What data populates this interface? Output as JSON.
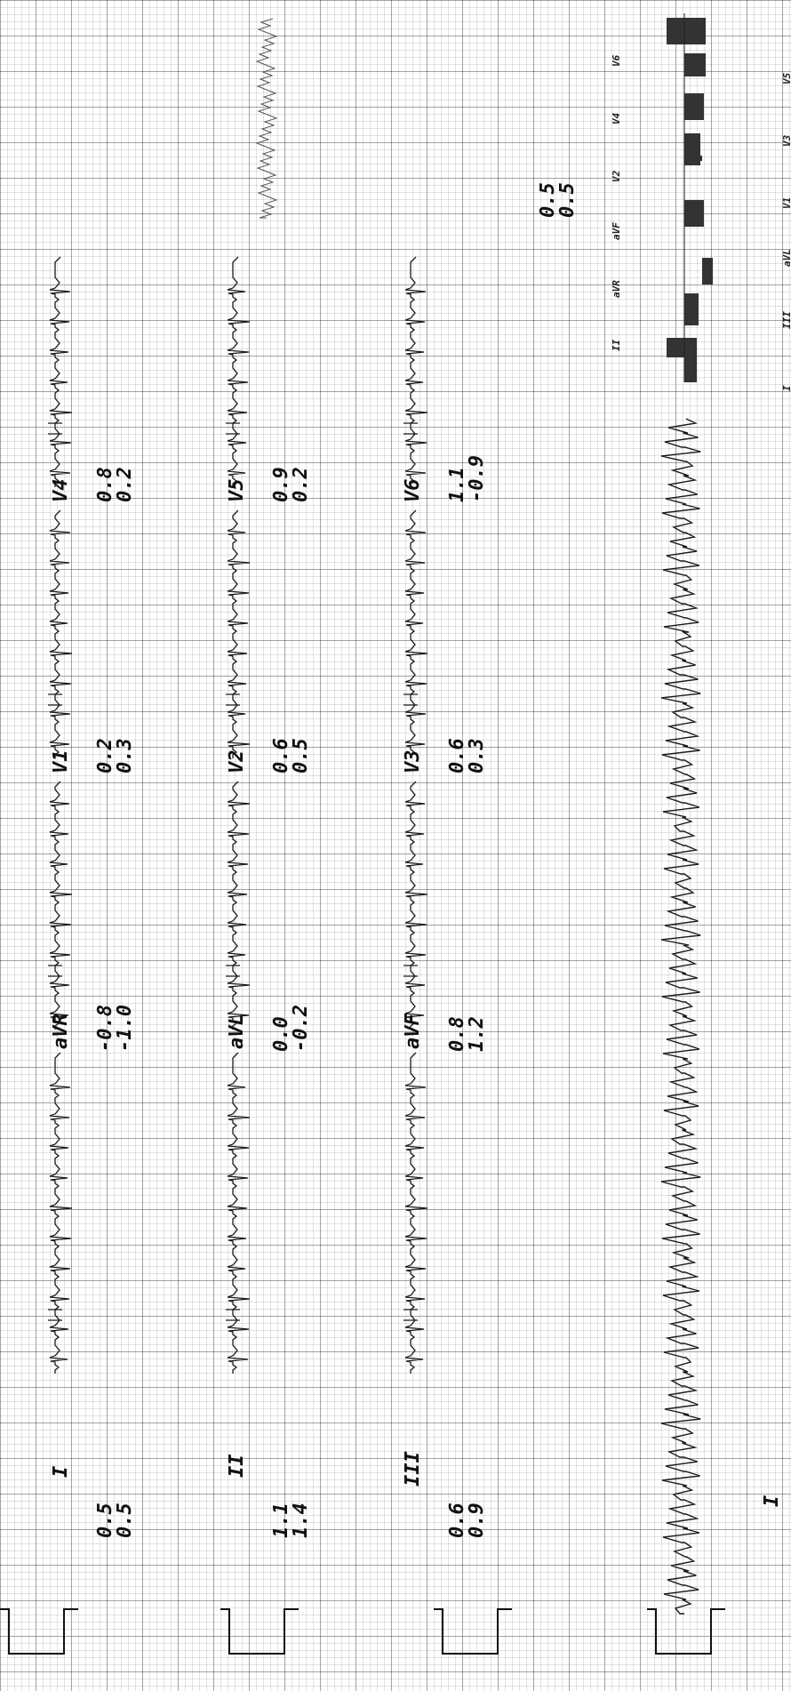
{
  "leads": [
    {
      "name": "I",
      "v1": "0.5",
      "v2": "0.5"
    },
    {
      "name": "aVR",
      "v1": "-0.8",
      "v2": "-1.0"
    },
    {
      "name": "V1",
      "v1": "0.2",
      "v2": "0.3"
    },
    {
      "name": "V4",
      "v1": "0.8",
      "v2": "0.2"
    },
    {
      "name": "II",
      "v1": "1.1",
      "v2": "1.4"
    },
    {
      "name": "aVL",
      "v1": "0.0",
      "v2": "-0.2"
    },
    {
      "name": "V2",
      "v1": "0.6",
      "v2": "0.5"
    },
    {
      "name": "V5",
      "v1": "0.9",
      "v2": "0.2"
    },
    {
      "name": "III",
      "v1": "0.6",
      "v2": "0.9"
    },
    {
      "name": "aVF",
      "v1": "0.8",
      "v2": "1.2"
    },
    {
      "name": "V3",
      "v1": "0.6",
      "v2": "0.3"
    },
    {
      "name": "V6",
      "v1": "1.1",
      "v2": "-0.9"
    }
  ],
  "rhythm_strip": {
    "lead": "I"
  },
  "summary": {
    "values": [
      "0.5",
      "0.5"
    ],
    "leads": [
      "II",
      "aVR",
      "aVF",
      "V2",
      "V4",
      "V6",
      "I",
      "III",
      "aVL",
      "V1",
      "V3",
      "V5"
    ]
  }
}
